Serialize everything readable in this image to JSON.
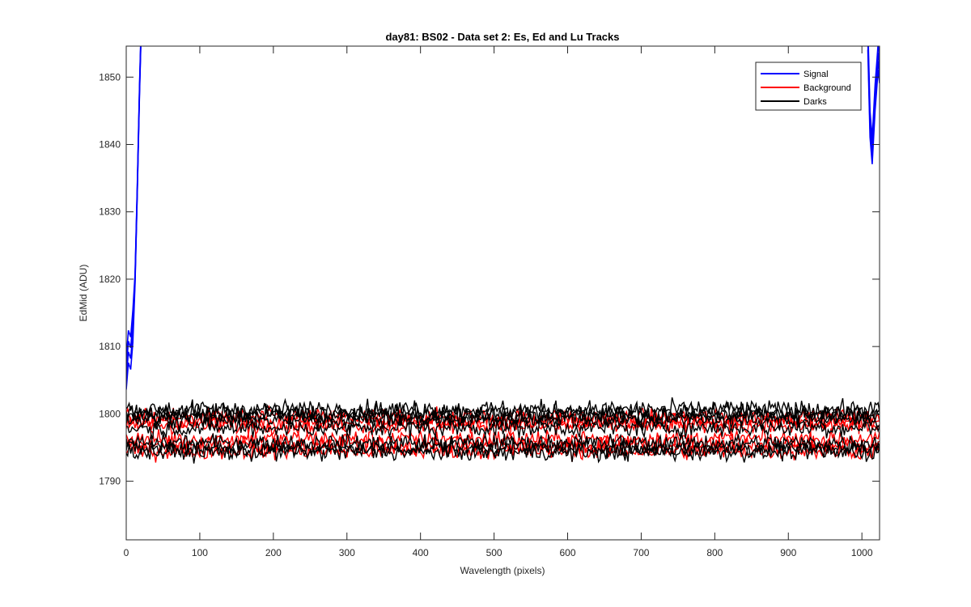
{
  "chart_data": {
    "type": "line",
    "title": "day81: BS02 - Data set 2: Es, Ed and Lu Tracks",
    "xlabel": "Wavelength (pixels)",
    "ylabel": "EdMid (ADU)",
    "xlim": [
      0,
      1024
    ],
    "ylim": [
      1781.3,
      1854.6
    ],
    "xticks": [
      0,
      100,
      200,
      300,
      400,
      500,
      600,
      700,
      800,
      900,
      1000
    ],
    "yticks": [
      1790,
      1800,
      1810,
      1820,
      1830,
      1840,
      1850
    ],
    "grid": false,
    "legend_location": "top-right",
    "series": [
      {
        "name": "Signal",
        "color": "#0000ff",
        "description_points_left": [
          [
            0,
            1806
          ],
          [
            3,
            1810
          ],
          [
            6,
            1809
          ],
          [
            9,
            1813
          ],
          [
            12,
            1820
          ],
          [
            15,
            1833
          ],
          [
            18,
            1848
          ],
          [
            20,
            1856
          ]
        ],
        "description_points_right": [
          [
            1008,
            1856
          ],
          [
            1011,
            1843
          ],
          [
            1014,
            1839
          ],
          [
            1016,
            1843
          ],
          [
            1018,
            1847
          ],
          [
            1020,
            1850
          ],
          [
            1022,
            1853
          ],
          [
            1024,
            1851
          ]
        ],
        "traces": 4
      },
      {
        "name": "Background",
        "color": "#ff0000",
        "mean": 1797.5,
        "spread": 2.5,
        "range": [
          1791,
          1803
        ],
        "traces": 6
      },
      {
        "name": "Darks",
        "color": "#000000",
        "mean": 1797.5,
        "spread": 3.0,
        "range": [
          1791,
          1804.5
        ],
        "traces": 8
      }
    ]
  }
}
